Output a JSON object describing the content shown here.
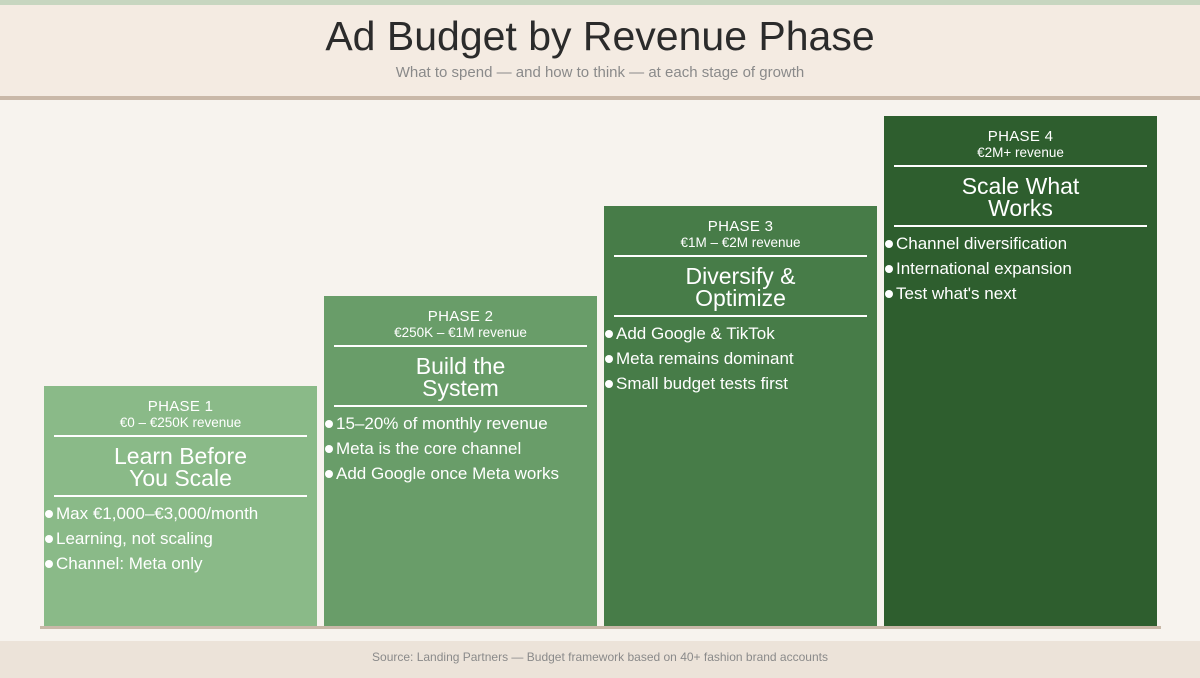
{
  "header": {
    "title": "Ad Budget by Revenue Phase",
    "subtitle": "What to spend — and how to think — at each stage of growth"
  },
  "phases": [
    {
      "label": "PHASE 1",
      "revenue": "€0 – €250K revenue",
      "name": "Learn Before\nYou Scale",
      "color": "#8aba88",
      "bullets": [
        "Max €1,000–€3,000/month",
        "Learning, not scaling",
        "Channel: Meta only"
      ]
    },
    {
      "label": "PHASE 2",
      "revenue": "€250K – €1M revenue",
      "name": "Build the\nSystem",
      "color": "#699d69",
      "bullets": [
        "15–20% of monthly revenue",
        "Meta is the core channel",
        "Add Google once Meta works"
      ]
    },
    {
      "label": "PHASE 3",
      "revenue": "€1M – €2M revenue",
      "name": "Diversify &\nOptimize",
      "color": "#477c48",
      "bullets": [
        "Add Google & TikTok",
        "Meta remains dominant",
        "Small budget tests first"
      ]
    },
    {
      "label": "PHASE 4",
      "revenue": "€2M+ revenue",
      "name": "Scale What\nWorks",
      "color": "#2e5e2e",
      "bullets": [
        "Channel diversification",
        "International expansion",
        "Test what's next"
      ]
    }
  ],
  "footer": {
    "source": "Source: Landing Partners — Budget framework based on 40+ fashion brand accounts"
  }
}
